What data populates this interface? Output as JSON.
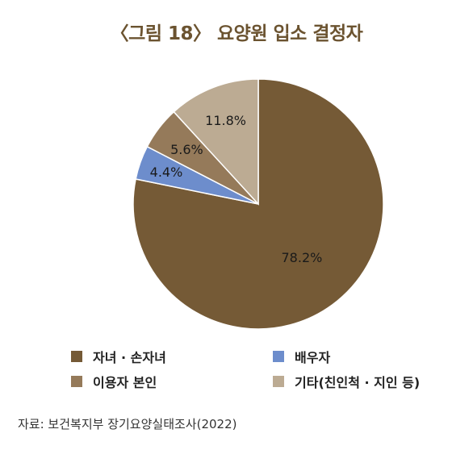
{
  "chart_data": {
    "type": "pie",
    "title": "〈그림 18〉 요양원 입소 결정자",
    "categories": [
      "자녀 · 손자녀",
      "배우자",
      "이용자 본인",
      "기타(친인척 · 지인 등)"
    ],
    "values": [
      78.2,
      4.4,
      5.6,
      11.8
    ],
    "value_labels": [
      "78.2%",
      "4.4%",
      "5.6%",
      "11.8%"
    ],
    "colors": [
      "#755a36",
      "#6d8dcc",
      "#957a5a",
      "#bcab93"
    ],
    "legend_position": "bottom"
  },
  "source": "자료: 보건복지부 장기요양실태조사(2022)"
}
